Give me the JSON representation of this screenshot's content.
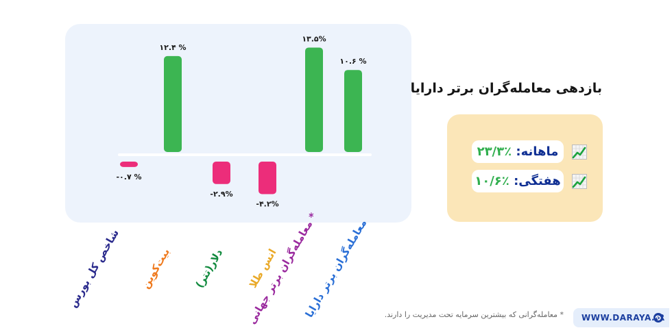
{
  "title": "بازدهی معامله‌گران برتر دارایا",
  "stats": [
    {
      "label": "ماهانه:",
      "value": "٪۲۳/۳",
      "icon": "chart-up-icon"
    },
    {
      "label": "هفتگی:",
      "value": "٪۱۰/۶",
      "icon": "chart-up-icon"
    }
  ],
  "footnote": "* معامله‌گرانی که بیشترین سرمایه تحت مدیریت را دارند.",
  "brand": {
    "url": "WWW.DARAYA.IR",
    "logo_icon": "daraya-logo-icon"
  },
  "colors": {
    "positive": "#3cb552",
    "negative": "#ec2d7a",
    "panel": "#edf3fc",
    "stats_card": "#fbe6b8"
  },
  "chart_data": {
    "type": "bar",
    "categories": [
      "شاخص کل بورس",
      "بیت‌کوین",
      "دلار(تتر)",
      "انس طلا",
      "معامله‌گران برتر جهانی *",
      "معامله‌گران برتر دارایا"
    ],
    "category_colors": [
      "#2a2a8c",
      "#ef7a1e",
      "#118a3e",
      "#e9a928",
      "#9a2a9e",
      "#2a6fd6"
    ],
    "values": [
      -0.7,
      12.4,
      -2.9,
      -4.2,
      13.5,
      10.6
    ],
    "data_labels": [
      "-۰.۷ %",
      "۱۲.۴ %",
      "-۲.۹%",
      "-۴.۲%",
      "۱۳.۵%",
      "۱۰.۶ %"
    ]
  }
}
